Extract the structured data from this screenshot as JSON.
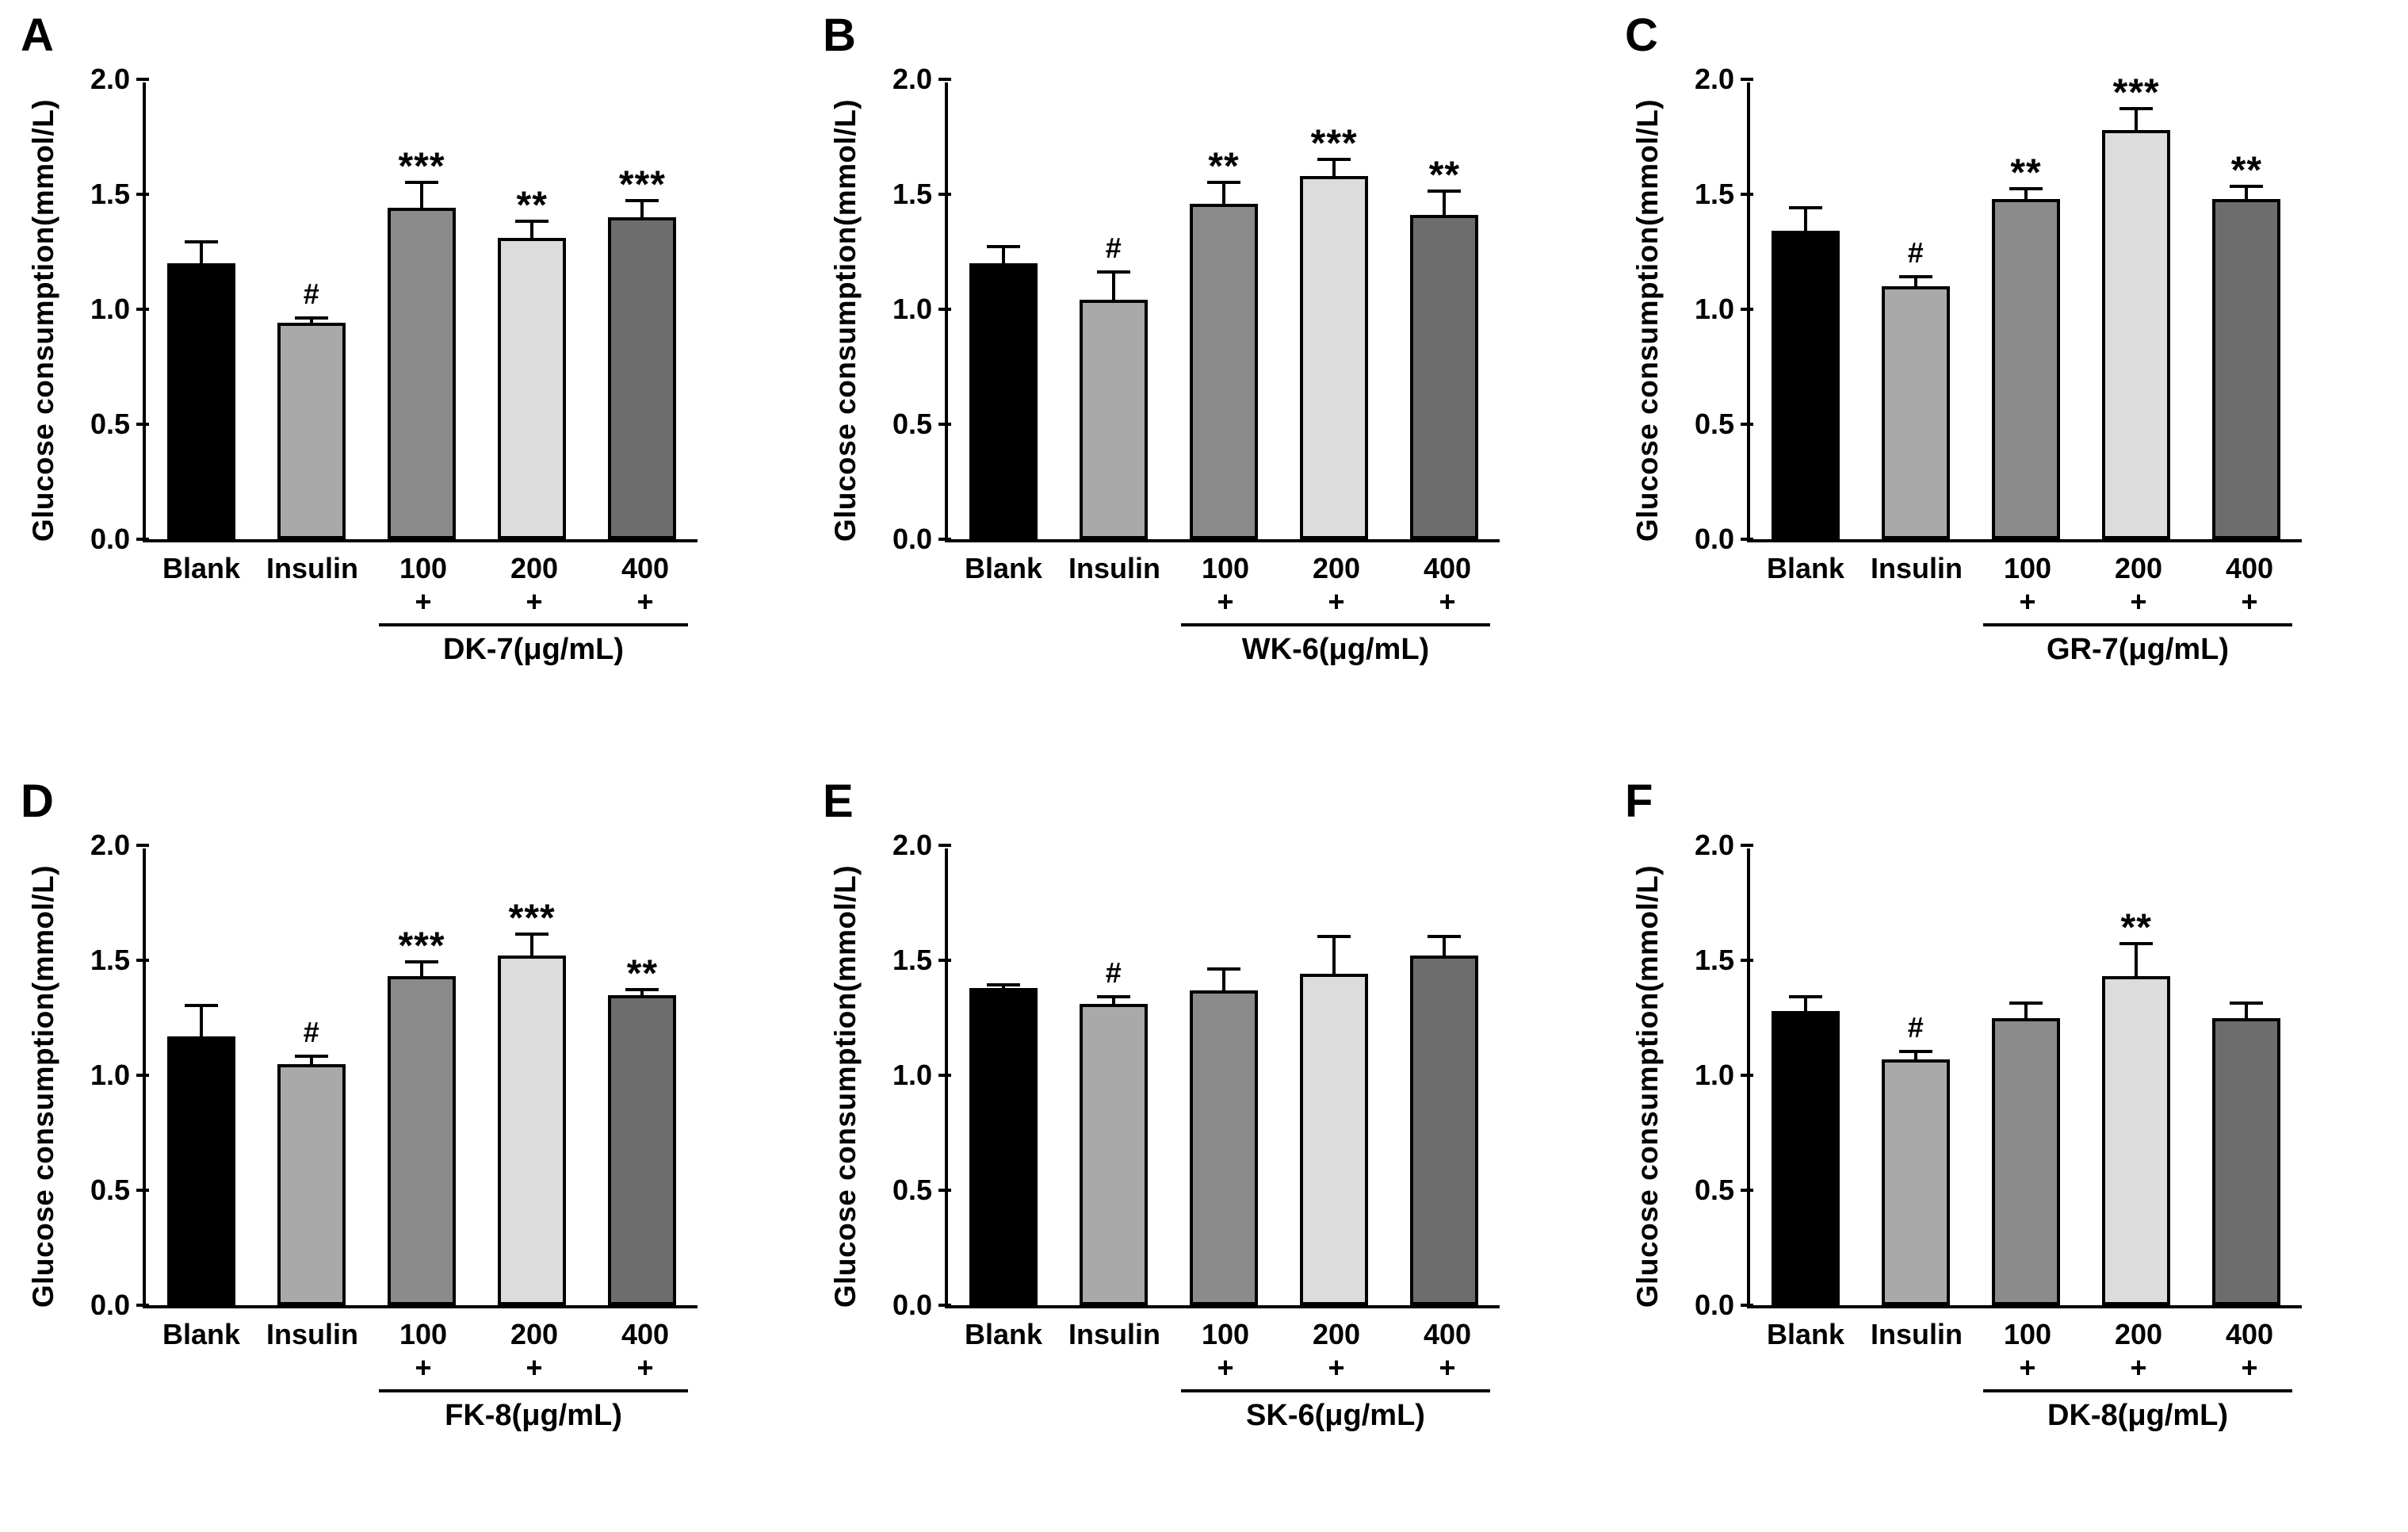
{
  "style": {
    "bar_colors": [
      "#000000",
      "#a9a9a9",
      "#8b8b8b",
      "#dcdcdc",
      "#6d6d6d"
    ],
    "axis_color": "#000000",
    "background": "#ffffff"
  },
  "chart_data": [
    {
      "type": "bar",
      "panel": "A",
      "ylabel": "Glucose consumption(mmol/L)",
      "ylim": [
        0,
        2.0
      ],
      "yticks": [
        0.0,
        0.5,
        1.0,
        1.5,
        2.0
      ],
      "categories": [
        "Blank",
        "Insulin",
        "100",
        "200",
        "400"
      ],
      "values": [
        1.2,
        0.94,
        1.44,
        1.31,
        1.4
      ],
      "errors": [
        0.1,
        0.03,
        0.12,
        0.08,
        0.08
      ],
      "sig": [
        "",
        "#",
        "***",
        "**",
        "***"
      ],
      "plus_row": [
        "",
        "",
        "+",
        "+",
        "+"
      ],
      "treatment_label": "DK-7(μg/mL)",
      "legend_position": "none",
      "grid": false
    },
    {
      "type": "bar",
      "panel": "B",
      "ylabel": "Glucose consumption(mmol/L)",
      "ylim": [
        0,
        2.0
      ],
      "yticks": [
        0.0,
        0.5,
        1.0,
        1.5,
        2.0
      ],
      "categories": [
        "Blank",
        "Insulin",
        "100",
        "200",
        "400"
      ],
      "values": [
        1.2,
        1.04,
        1.46,
        1.58,
        1.41
      ],
      "errors": [
        0.08,
        0.13,
        0.1,
        0.08,
        0.11
      ],
      "sig": [
        "",
        "#",
        "**",
        "***",
        "**"
      ],
      "plus_row": [
        "",
        "",
        "+",
        "+",
        "+"
      ],
      "treatment_label": "WK-6(μg/mL)",
      "legend_position": "none",
      "grid": false
    },
    {
      "type": "bar",
      "panel": "C",
      "ylabel": "Glucose consumption(mmol/L)",
      "ylim": [
        0,
        2.0
      ],
      "yticks": [
        0.0,
        0.5,
        1.0,
        1.5,
        2.0
      ],
      "categories": [
        "Blank",
        "Insulin",
        "100",
        "200",
        "400"
      ],
      "values": [
        1.34,
        1.1,
        1.48,
        1.78,
        1.48
      ],
      "errors": [
        0.11,
        0.05,
        0.05,
        0.1,
        0.06
      ],
      "sig": [
        "",
        "#",
        "**",
        "***",
        "**"
      ],
      "plus_row": [
        "",
        "",
        "+",
        "+",
        "+"
      ],
      "treatment_label": "GR-7(μg/mL)",
      "legend_position": "none",
      "grid": false
    },
    {
      "type": "bar",
      "panel": "D",
      "ylabel": "Glucose consumption(mmol/L)",
      "ylim": [
        0,
        2.0
      ],
      "yticks": [
        0.0,
        0.5,
        1.0,
        1.5,
        2.0
      ],
      "categories": [
        "Blank",
        "Insulin",
        "100",
        "200",
        "400"
      ],
      "values": [
        1.17,
        1.05,
        1.43,
        1.52,
        1.35
      ],
      "errors": [
        0.14,
        0.04,
        0.07,
        0.1,
        0.03
      ],
      "sig": [
        "",
        "#",
        "***",
        "***",
        "**"
      ],
      "plus_row": [
        "",
        "",
        "+",
        "+",
        "+"
      ],
      "treatment_label": "FK-8(μg/mL)",
      "legend_position": "none",
      "grid": false
    },
    {
      "type": "bar",
      "panel": "E",
      "ylabel": "Glucose consumption(mmol/L)",
      "ylim": [
        0,
        2.0
      ],
      "yticks": [
        0.0,
        0.5,
        1.0,
        1.5,
        2.0
      ],
      "categories": [
        "Blank",
        "Insulin",
        "100",
        "200",
        "400"
      ],
      "values": [
        1.38,
        1.31,
        1.37,
        1.44,
        1.52
      ],
      "errors": [
        0.02,
        0.04,
        0.1,
        0.17,
        0.09
      ],
      "sig": [
        "",
        "#",
        "",
        "",
        ""
      ],
      "plus_row": [
        "",
        "",
        "+",
        "+",
        "+"
      ],
      "treatment_label": "SK-6(μg/mL)",
      "legend_position": "none",
      "grid": false
    },
    {
      "type": "bar",
      "panel": "F",
      "ylabel": "Glucose consumption(mmol/L)",
      "ylim": [
        0,
        2.0
      ],
      "yticks": [
        0.0,
        0.5,
        1.0,
        1.5,
        2.0
      ],
      "categories": [
        "Blank",
        "Insulin",
        "100",
        "200",
        "400"
      ],
      "values": [
        1.28,
        1.07,
        1.25,
        1.43,
        1.25
      ],
      "errors": [
        0.07,
        0.04,
        0.07,
        0.15,
        0.07
      ],
      "sig": [
        "",
        "#",
        "",
        "**",
        ""
      ],
      "plus_row": [
        "",
        "",
        "+",
        "+",
        "+"
      ],
      "treatment_label": "DK-8(μg/mL)",
      "legend_position": "none",
      "grid": false
    }
  ]
}
